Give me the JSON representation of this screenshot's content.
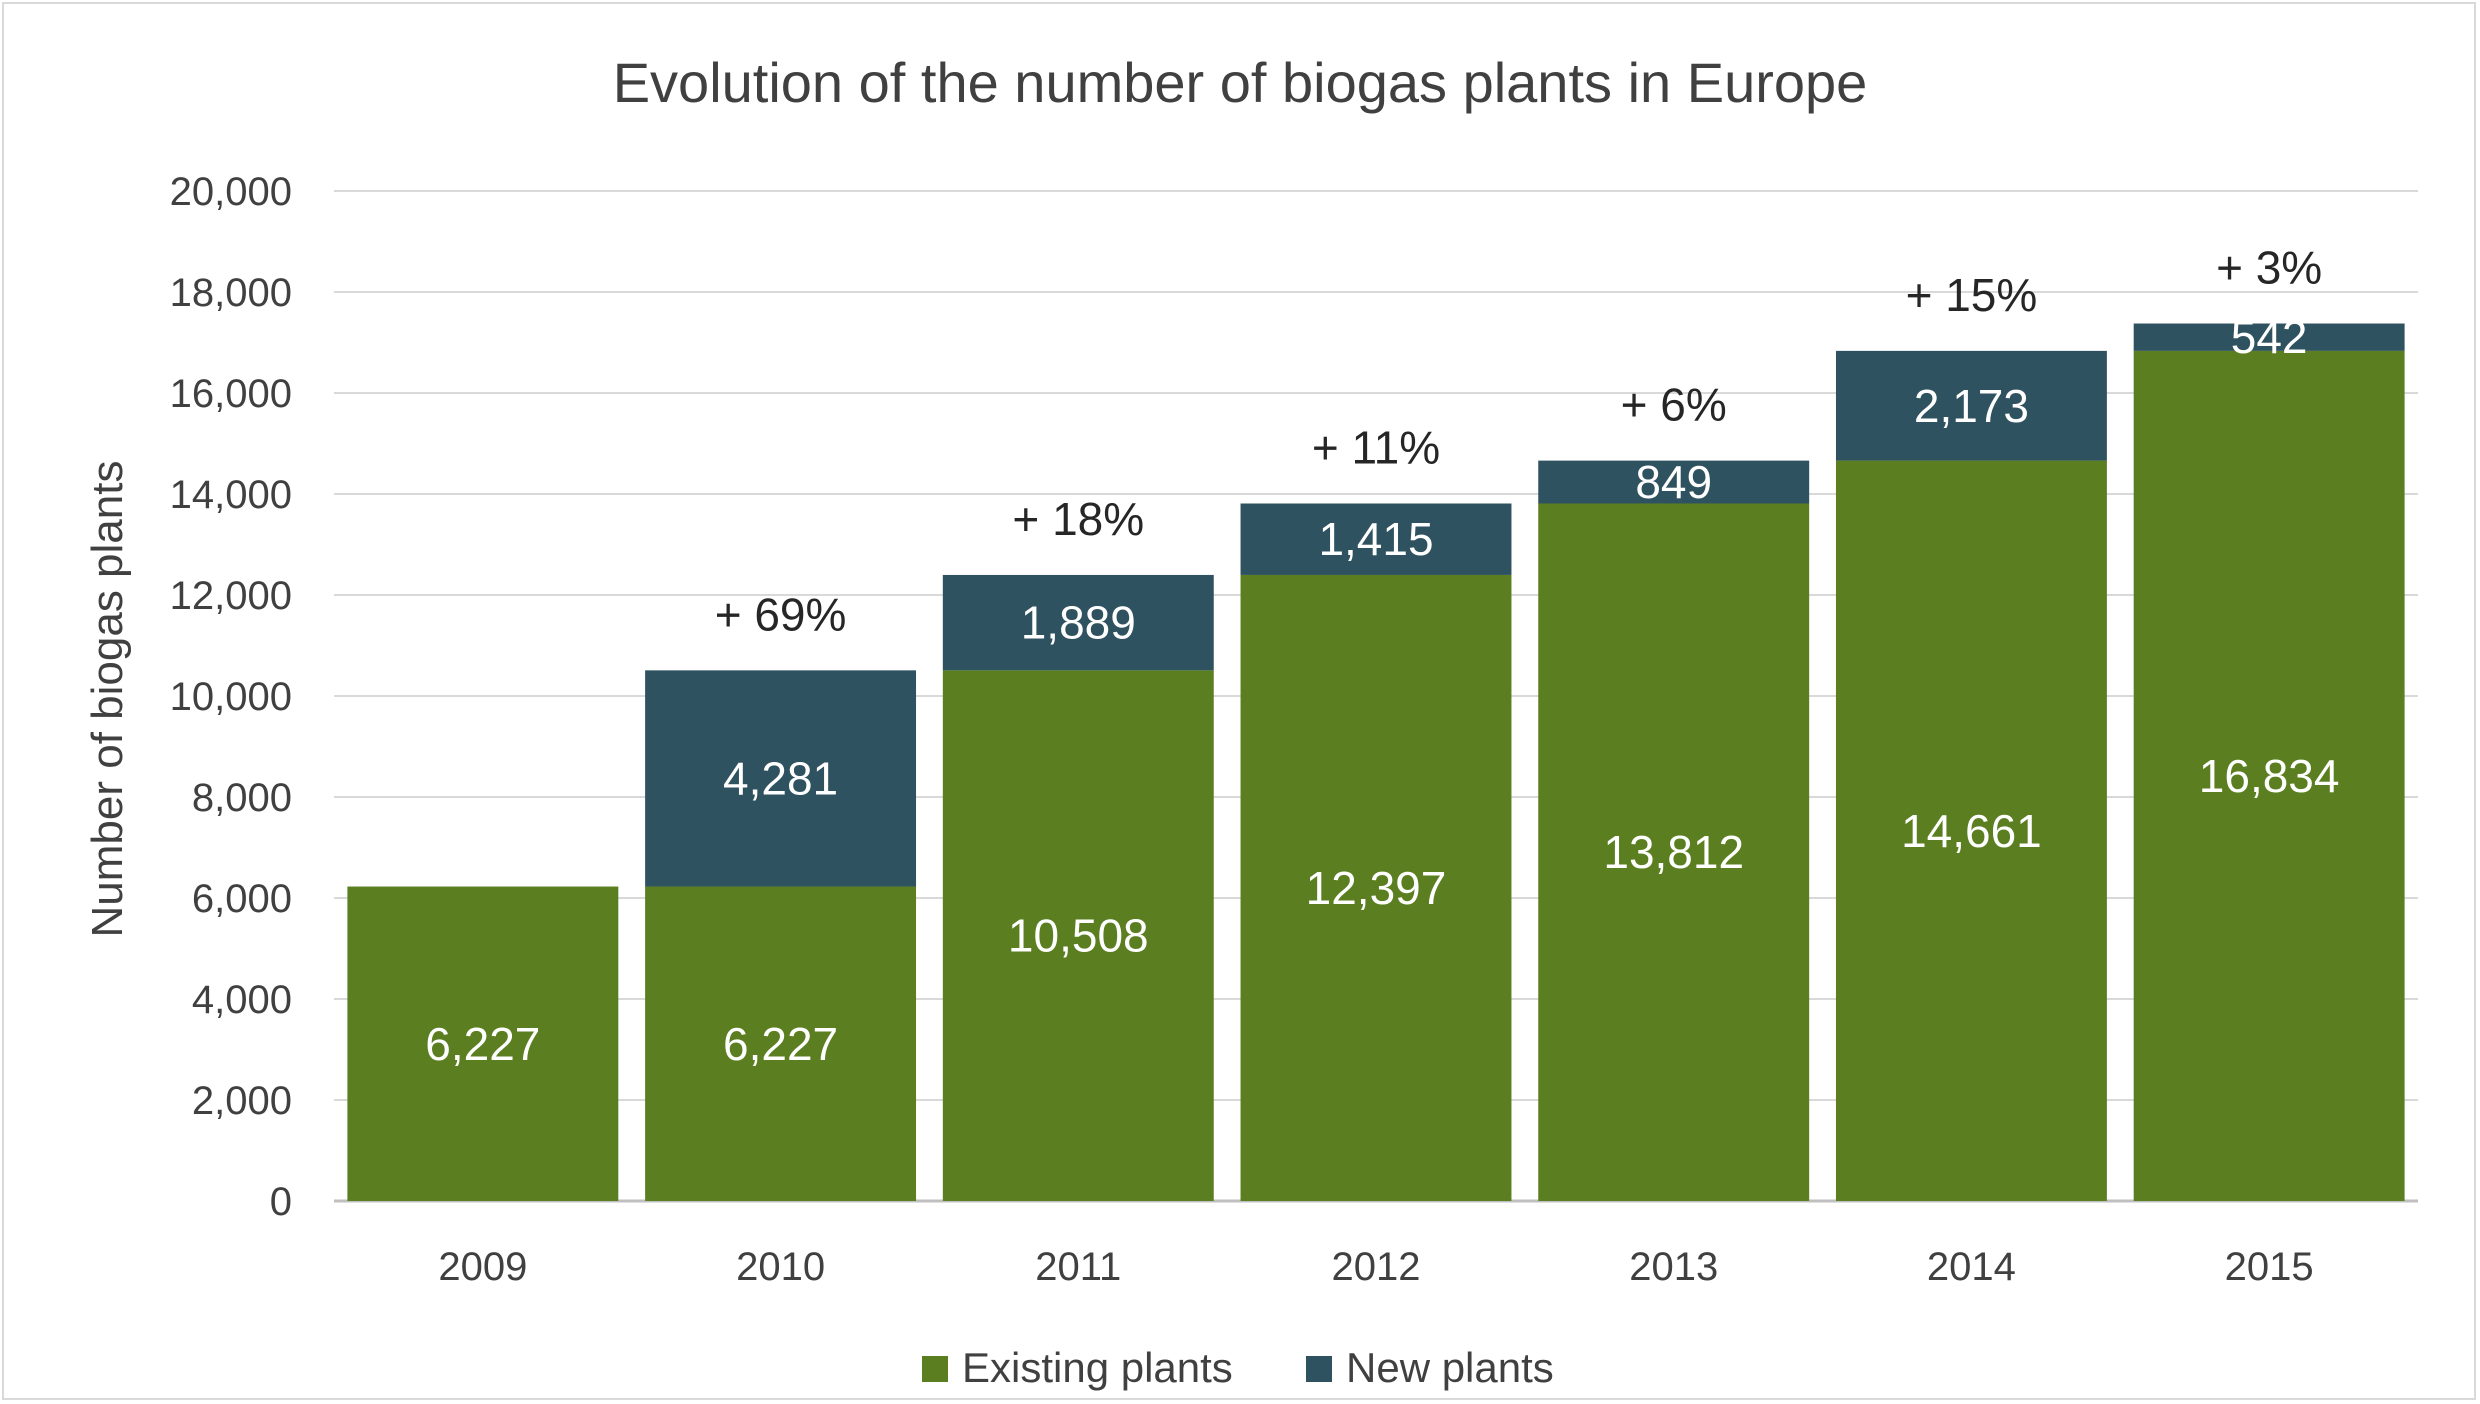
{
  "chart_data": {
    "type": "bar",
    "stacked": true,
    "title": "Evolution of the number of biogas plants in Europe",
    "xlabel": "",
    "ylabel": "Number of biogas plants",
    "ylim": [
      0,
      20000
    ],
    "yticks": [
      0,
      2000,
      4000,
      6000,
      8000,
      10000,
      12000,
      14000,
      16000,
      18000,
      20000
    ],
    "ytick_labels": [
      "0",
      "2,000",
      "4,000",
      "6,000",
      "8,000",
      "10,000",
      "12,000",
      "14,000",
      "16,000",
      "18,000",
      "20,000"
    ],
    "categories": [
      "2009",
      "2010",
      "2011",
      "2012",
      "2013",
      "2014",
      "2015"
    ],
    "series": [
      {
        "name": "Existing plants",
        "color": "#5b7f20",
        "values": [
          6227,
          6227,
          10508,
          12397,
          13812,
          14661,
          16834
        ],
        "labels": [
          "6,227",
          "6,227",
          "10,508",
          "12,397",
          "13,812",
          "14,661",
          "16,834"
        ]
      },
      {
        "name": "New plants",
        "color": "#2f5260",
        "values": [
          0,
          4281,
          1889,
          1415,
          849,
          2173,
          542
        ],
        "labels": [
          "",
          "4,281",
          "1,889",
          "1,415",
          "849",
          "2,173",
          "542"
        ]
      }
    ],
    "growth_labels": [
      "",
      "+ 69%",
      "+ 18%",
      "+ 11%",
      "+ 6%",
      "+ 15%",
      "+ 3%"
    ],
    "grid": true,
    "legend_position": "bottom"
  }
}
